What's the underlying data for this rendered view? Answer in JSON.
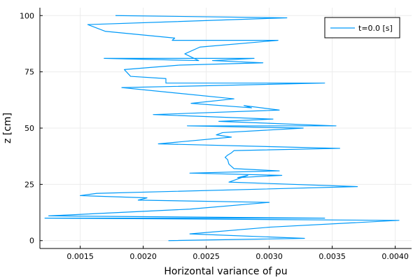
{
  "chart_data": {
    "type": "line",
    "title": "",
    "xlabel": "Horizontal variance of ρu",
    "ylabel": "z [cm]",
    "xlim": [
      0.00118,
      0.00413
    ],
    "ylim": [
      -3.5,
      103.5
    ],
    "xticks": [
      0.0015,
      0.002,
      0.0025,
      0.003,
      0.0035,
      0.004
    ],
    "xtick_labels": [
      "0.0015",
      "0.0020",
      "0.0025",
      "0.0030",
      "0.0035",
      "0.0040"
    ],
    "yticks": [
      0,
      25,
      50,
      75,
      100
    ],
    "ytick_labels": [
      "0",
      "25",
      "50",
      "75",
      "100"
    ],
    "grid": true,
    "legend_position": "top-right",
    "colors": {
      "series": "#009af9",
      "grid": "#ececec",
      "axis": "#000000"
    },
    "series": [
      {
        "name": "t=0.0 [s]",
        "x": [
          0.0022,
          0.00328,
          0.00237,
          0.00301,
          0.00403,
          0.00122,
          0.00344,
          0.00125,
          0.00237,
          0.003,
          0.00196,
          0.00203,
          0.0015,
          0.00163,
          0.0037,
          0.00268,
          0.00283,
          0.00275,
          0.0031,
          0.00237,
          0.00308,
          0.00272,
          0.0027,
          0.00268,
          0.00267,
          0.00265,
          0.00267,
          0.0027,
          0.00272,
          0.00356,
          0.00212,
          0.0027,
          0.00258,
          0.00263,
          0.00327,
          0.00235,
          0.00353,
          0.0026,
          0.00303,
          0.00208,
          0.00308,
          0.0028,
          0.00286,
          0.00238,
          0.00272,
          0.00183,
          0.00344,
          0.00218,
          0.00218,
          0.0019,
          0.00185,
          0.00229,
          0.00295,
          0.00255,
          0.00288,
          0.00169,
          0.00244,
          0.00233,
          0.00245,
          0.00307,
          0.00223,
          0.00225,
          0.0017,
          0.00156,
          0.00314,
          0.00178
        ],
        "y": [
          0,
          1,
          3,
          6,
          9,
          10,
          10,
          11,
          14,
          17,
          18,
          19,
          20,
          21,
          24,
          26,
          29,
          28,
          29,
          30,
          31,
          32,
          33,
          34,
          36,
          37,
          38,
          39,
          40,
          41,
          43,
          46,
          47,
          48,
          50,
          51,
          51,
          53,
          54,
          56,
          58,
          60,
          59,
          61,
          63,
          68,
          70,
          70,
          72,
          73,
          76,
          78,
          79,
          80,
          81,
          81,
          80,
          83,
          86,
          89,
          89,
          90,
          93,
          96,
          99,
          100
        ]
      }
    ]
  }
}
